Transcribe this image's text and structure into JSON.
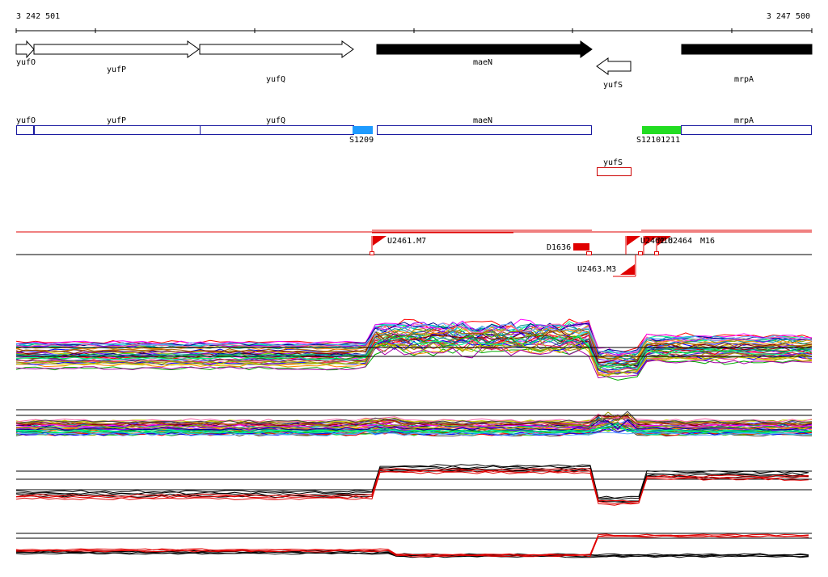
{
  "coordinates": {
    "start": "3 242 501",
    "end": "3 247 500"
  },
  "genes": [
    {
      "name": "yufO",
      "strand": "+",
      "essential": false
    },
    {
      "name": "yufP",
      "strand": "+",
      "essential": false
    },
    {
      "name": "yufQ",
      "strand": "+",
      "essential": false
    },
    {
      "name": "maeN",
      "strand": "+",
      "essential": true
    },
    {
      "name": "yufS",
      "strand": "-",
      "essential": false
    },
    {
      "name": "mrpA",
      "strand": "+",
      "essential": true
    }
  ],
  "annotation_track": {
    "plus_genes": [
      "yufO",
      "yufP",
      "yufQ",
      "maeN",
      "mrpA"
    ],
    "minus_genes": [
      "yufS"
    ],
    "features": [
      {
        "label": "S1209",
        "color": "#1e9bff"
      },
      {
        "label": "S12101211",
        "color": "#22dd22"
      }
    ]
  },
  "promoters": [
    {
      "label": "U2461.M7"
    },
    {
      "label": "D1636"
    },
    {
      "label": "U2463.M3"
    },
    {
      "label": "U2462"
    },
    {
      "label": "M16"
    },
    {
      "label": "U2464"
    },
    {
      "label": "M16"
    }
  ],
  "colors": {
    "gene_fill": "#000000",
    "gene_outline": "#000000",
    "track_box": "#1a1aa0",
    "minus_box": "#cc0000",
    "promoter": "#e00000",
    "feature_blue": "#1e9bff",
    "feature_green": "#22dd22"
  }
}
